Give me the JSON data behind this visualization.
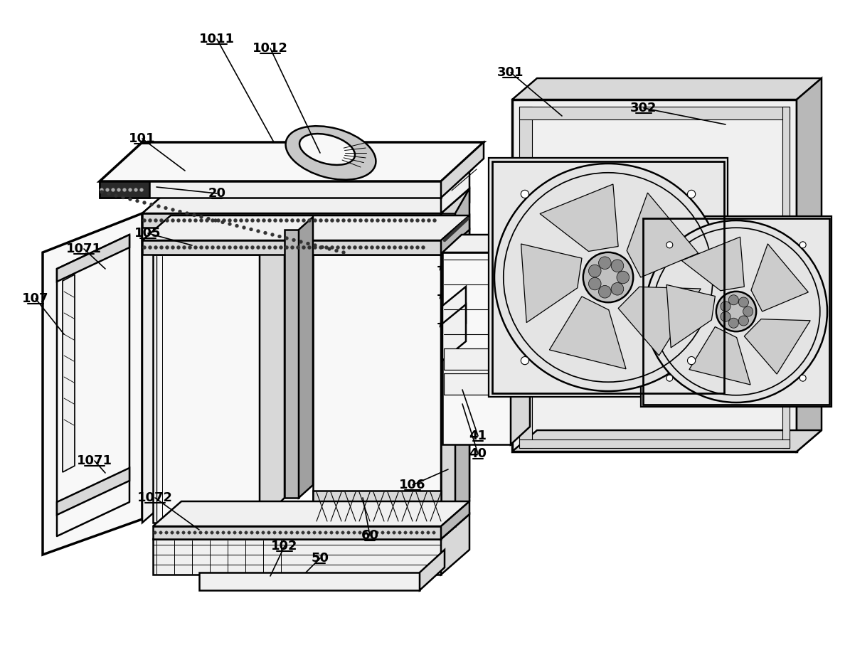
{
  "bg_color": "#ffffff",
  "line_color": "#000000",
  "lw": 1.8,
  "tlw": 2.5,
  "label_fontsize": 13,
  "label_fontweight": "bold",
  "gray_light": "#f0f0f0",
  "gray_mid": "#d8d8d8",
  "gray_dark": "#b8b8b8",
  "white": "#ffffff",
  "near_white": "#f8f8f8"
}
